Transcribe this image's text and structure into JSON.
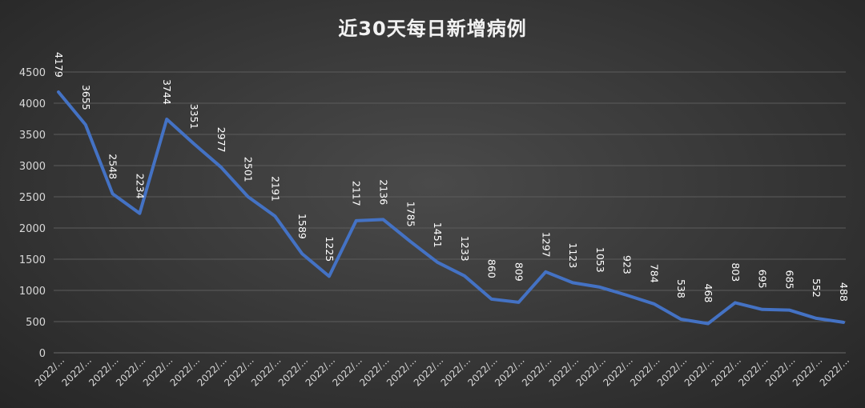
{
  "chart_data": {
    "type": "line",
    "title": "近30天每日新增病例",
    "xlabel": "",
    "ylabel": "",
    "ylim": [
      0,
      4500
    ],
    "yticks": [
      0,
      500,
      1000,
      1500,
      2000,
      2500,
      3000,
      3500,
      4000,
      4500
    ],
    "grid": true,
    "legend": "none",
    "line_color": "#4472c4",
    "categories": [
      "2022/...",
      "2022/...",
      "2022/...",
      "2022/...",
      "2022/...",
      "2022/...",
      "2022/...",
      "2022/...",
      "2022/...",
      "2022/...",
      "2022/...",
      "2022/...",
      "2022/...",
      "2022/...",
      "2022/...",
      "2022/...",
      "2022/...",
      "2022/...",
      "2022/...",
      "2022/...",
      "2022/...",
      "2022/...",
      "2022/...",
      "2022/...",
      "2022/...",
      "2022/...",
      "2022/...",
      "2022/...",
      "2022/...",
      "2022/..."
    ],
    "series": [
      {
        "values": [
          4179,
          3655,
          2548,
          2234,
          3744,
          3351,
          2977,
          2501,
          2191,
          1589,
          1225,
          2117,
          2136,
          1785,
          1451,
          1233,
          860,
          809,
          1297,
          1123,
          1053,
          923,
          784,
          538,
          468,
          803,
          695,
          685,
          552,
          488
        ]
      }
    ]
  }
}
